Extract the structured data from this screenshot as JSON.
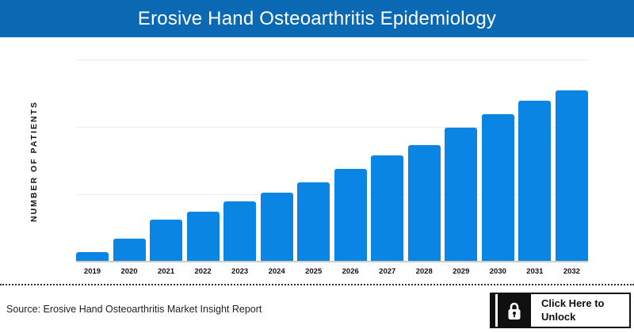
{
  "header": {
    "title": "Erosive Hand Osteoarthritis Epidemiology",
    "bg_color": "#0b69b3",
    "text_color": "#ffffff"
  },
  "chart_data": {
    "type": "bar",
    "title": "Erosive Hand Osteoarthritis Epidemiology",
    "categories": [
      "2019",
      "2020",
      "2021",
      "2022",
      "2023",
      "2024",
      "2025",
      "2026",
      "2027",
      "2028",
      "2029",
      "2030",
      "2031",
      "2032"
    ],
    "values": [
      5,
      13,
      24,
      29,
      35,
      40,
      46,
      54,
      62,
      68,
      78,
      86,
      94,
      100
    ],
    "values_unit": "relative, percent of 2032 bar height (no numeric y-axis labels shown)",
    "xlabel": "",
    "ylabel": "NUMBER OF PATIENTS",
    "ylim": [
      0,
      100
    ],
    "grid": "horizontal",
    "gridline_count": 3,
    "legend": "none",
    "bar_color": "#0b85e3",
    "gridline_color": "#ececec",
    "baseline_color": "#cdcdcd"
  },
  "footer": {
    "source_text": "Source: Erosive Hand Osteoarthritis Market Insight Report",
    "unlock_button": {
      "label": "Click Here to Unlock",
      "label_line1": "Click Here to",
      "label_line2": "Unlock",
      "icon": "lock-icon",
      "bg_color": "#101010"
    }
  }
}
